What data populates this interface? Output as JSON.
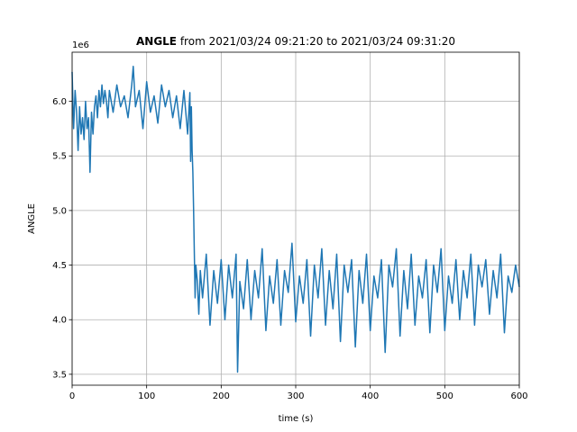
{
  "chart_data": {
    "type": "line",
    "title": {
      "bold": "ANGLE",
      "rest": " from 2021/03/24 09:21:20 to 2021/03/24 09:31:20"
    },
    "xlabel": "time (s)",
    "ylabel": "ANGLE",
    "offset_text": "1e6",
    "xlim": [
      0,
      600
    ],
    "ylim": [
      3.4,
      6.45
    ],
    "x_ticks": [
      0,
      100,
      200,
      300,
      400,
      500,
      600
    ],
    "y_ticks": [
      3.5,
      4.0,
      4.5,
      5.0,
      5.5,
      6.0
    ],
    "x_tick_labels": [
      "0",
      "100",
      "200",
      "300",
      "400",
      "500",
      "600"
    ],
    "y_tick_labels": [
      "3.5",
      "4.0",
      "4.5",
      "5.0",
      "5.5",
      "6.0"
    ],
    "grid": true,
    "line_color": "#1f77b4",
    "series": [
      {
        "x": [
          0,
          2,
          4,
          6,
          8,
          10,
          12,
          14,
          16,
          18,
          20,
          22,
          24,
          26,
          28,
          30,
          32,
          34,
          36,
          38,
          40,
          42,
          44,
          46,
          48,
          50,
          55,
          60,
          65,
          70,
          75,
          80,
          82,
          85,
          90,
          95,
          100,
          105,
          110,
          115,
          120,
          125,
          130,
          135,
          140,
          145,
          150,
          155,
          158,
          159,
          160,
          161,
          162,
          163,
          164,
          165,
          166,
          168,
          170,
          172,
          175,
          180,
          185,
          190,
          195,
          200,
          205,
          210,
          215,
          220,
          222,
          225,
          230,
          235,
          240,
          245,
          250,
          255,
          260,
          265,
          270,
          275,
          280,
          285,
          290,
          295,
          300,
          305,
          310,
          315,
          320,
          325,
          330,
          335,
          340,
          345,
          350,
          355,
          360,
          365,
          370,
          375,
          380,
          385,
          390,
          395,
          400,
          405,
          410,
          415,
          420,
          425,
          430,
          435,
          440,
          445,
          450,
          455,
          460,
          465,
          470,
          475,
          480,
          485,
          490,
          495,
          500,
          505,
          510,
          515,
          520,
          525,
          530,
          535,
          540,
          545,
          550,
          555,
          560,
          565,
          570,
          575,
          580,
          585,
          590,
          595,
          600
        ],
        "y": [
          6.27,
          5.75,
          6.1,
          5.9,
          5.55,
          5.95,
          5.7,
          5.85,
          5.65,
          6.0,
          5.75,
          5.85,
          5.35,
          5.9,
          5.7,
          5.95,
          6.05,
          5.85,
          6.1,
          5.95,
          6.15,
          5.98,
          6.1,
          6.0,
          5.85,
          6.1,
          5.9,
          6.15,
          5.95,
          6.05,
          5.85,
          6.15,
          6.32,
          5.95,
          6.1,
          5.75,
          6.18,
          5.9,
          6.05,
          5.8,
          6.15,
          5.95,
          6.1,
          5.85,
          6.05,
          5.75,
          6.1,
          5.7,
          6.08,
          5.45,
          5.95,
          5.55,
          5.35,
          5.0,
          4.6,
          4.2,
          4.5,
          4.35,
          4.05,
          4.45,
          4.2,
          4.6,
          3.95,
          4.45,
          4.15,
          4.55,
          4.0,
          4.5,
          4.2,
          4.6,
          3.52,
          4.35,
          4.1,
          4.55,
          4.0,
          4.45,
          4.2,
          4.65,
          3.9,
          4.4,
          4.15,
          4.55,
          3.95,
          4.45,
          4.25,
          4.7,
          3.98,
          4.4,
          4.15,
          4.55,
          3.85,
          4.5,
          4.2,
          4.65,
          3.95,
          4.45,
          4.1,
          4.6,
          3.8,
          4.5,
          4.25,
          4.55,
          3.75,
          4.45,
          4.15,
          4.6,
          3.9,
          4.4,
          4.2,
          4.55,
          3.7,
          4.5,
          4.3,
          4.65,
          3.85,
          4.45,
          4.1,
          4.6,
          3.95,
          4.4,
          4.2,
          4.55,
          3.88,
          4.5,
          4.25,
          4.65,
          3.9,
          4.4,
          4.15,
          4.55,
          4.0,
          4.45,
          4.2,
          4.6,
          3.95,
          4.5,
          4.3,
          4.55,
          4.05,
          4.45,
          4.2,
          4.6,
          3.88,
          4.4,
          4.25,
          4.5,
          4.3
        ]
      }
    ]
  }
}
